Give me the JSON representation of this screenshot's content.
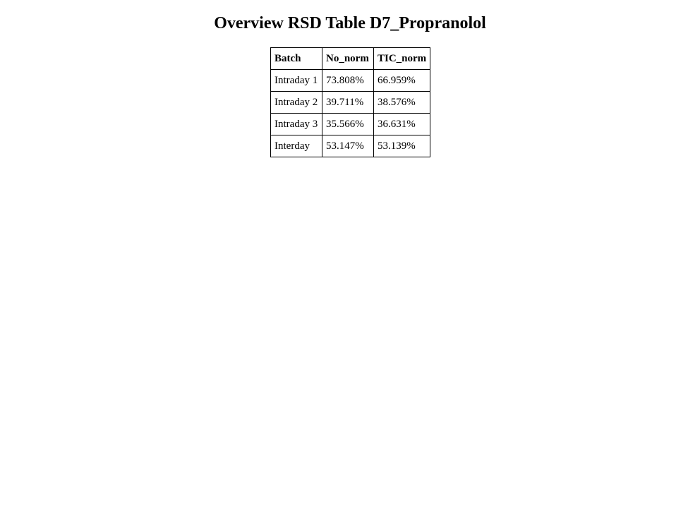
{
  "page": {
    "title": "Overview RSD Table D7_Propranolol"
  },
  "table": {
    "headers": [
      "Batch",
      "No_norm",
      "TIC_norm"
    ],
    "rows": [
      [
        "Intraday 1",
        "73.808%",
        "66.959%"
      ],
      [
        "Intraday 2",
        "39.711%",
        "38.576%"
      ],
      [
        "Intraday 3",
        "35.566%",
        "36.631%"
      ],
      [
        "Interday",
        "53.147%",
        "53.139%"
      ]
    ]
  }
}
